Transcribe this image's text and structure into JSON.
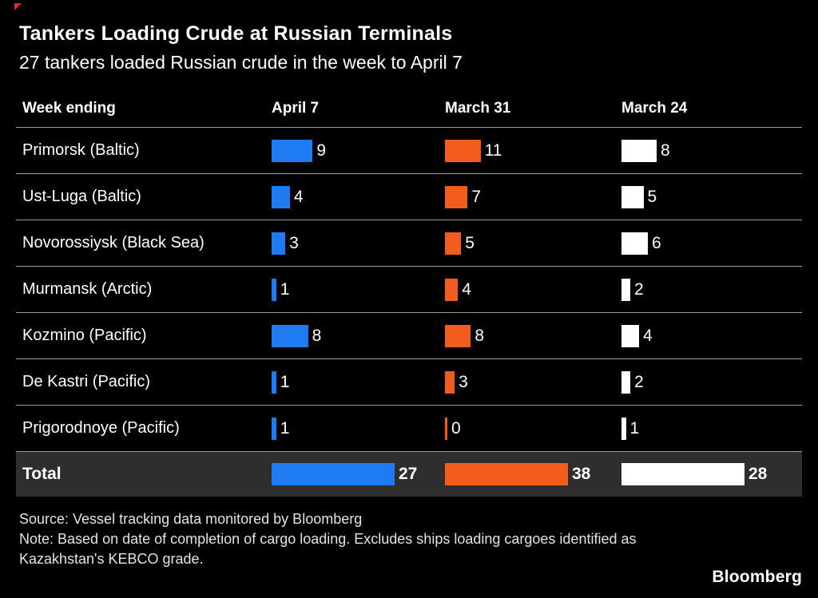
{
  "title": "Tankers Loading Crude at Russian Terminals",
  "subtitle": "27 tankers loaded Russian crude in the week to April 7",
  "chart_data": {
    "type": "bar",
    "title": "Tankers Loading Crude at Russian Terminals",
    "subtitle": "27 tankers loaded Russian crude in the week to April 7",
    "row_header": "Week ending",
    "categories": [
      "Primorsk (Baltic)",
      "Ust-Luga (Baltic)",
      "Novorossiysk (Black Sea)",
      "Murmansk (Arctic)",
      "Kozmino (Pacific)",
      "De Kastri (Pacific)",
      "Prigorodnoye (Pacific)"
    ],
    "columns": [
      {
        "label": "April 7",
        "color": "#1f7bf2",
        "values": [
          9,
          4,
          3,
          1,
          8,
          1,
          1
        ],
        "total": 27
      },
      {
        "label": "March 31",
        "color": "#f25d1e",
        "values": [
          11,
          7,
          5,
          4,
          8,
          3,
          0
        ],
        "total": 38
      },
      {
        "label": "March 24",
        "color": "#ffffff",
        "values": [
          8,
          5,
          6,
          2,
          4,
          2,
          1
        ],
        "total": 28
      }
    ],
    "total_label": "Total",
    "layout": {
      "legend": "none",
      "grid": "row-separators",
      "bar_scale": "per-column-total"
    }
  },
  "footer": {
    "source": "Source: Vessel tracking data monitored by Bloomberg",
    "note": "Note: Based on date of completion of cargo loading. Excludes ships loading cargoes identified as Kazakhstan's KEBCO grade.",
    "logo": "Bloomberg"
  }
}
